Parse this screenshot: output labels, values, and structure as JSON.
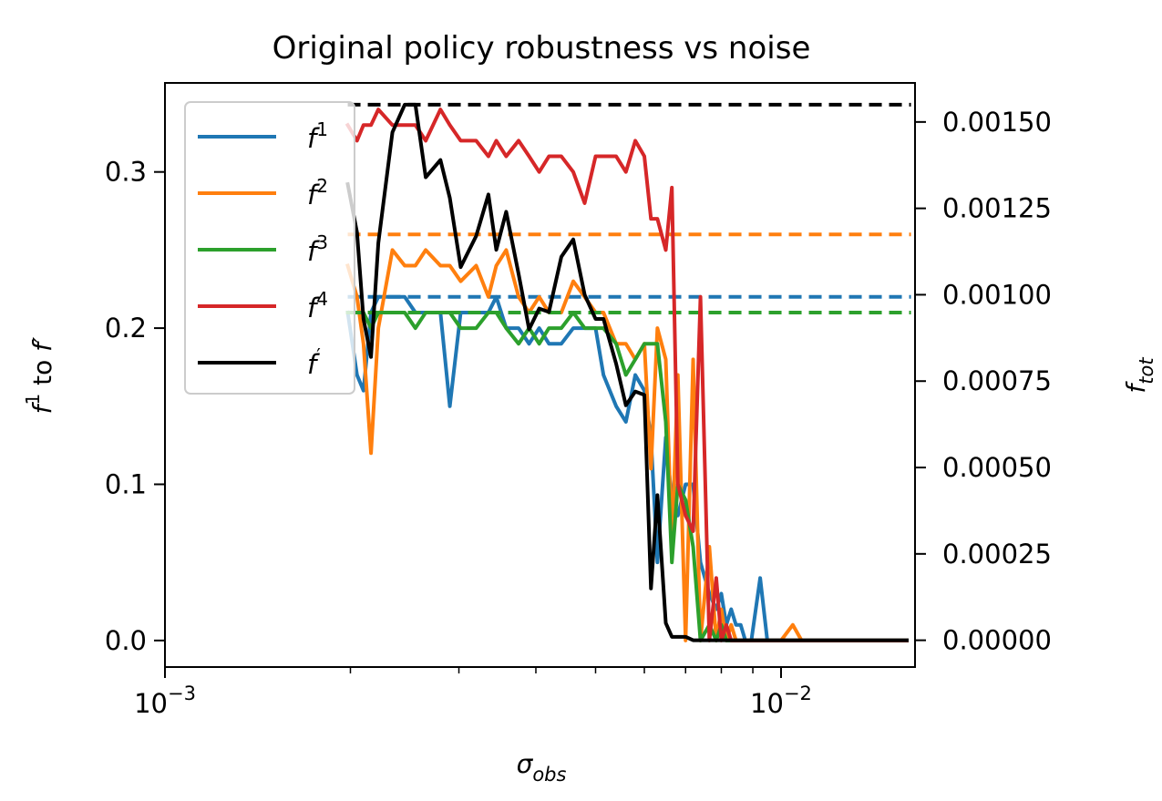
{
  "chart_data": {
    "type": "line",
    "title": "Original policy robustness vs noise",
    "xlabel": "σobs",
    "xlabel_parts": {
      "base": "σ",
      "sub": "obs"
    },
    "ylabel_left": "f1 to f′",
    "ylabel_left_parts": {
      "f1_base": "f",
      "f1_sup": "1",
      "mid": " to ",
      "fp": "f′"
    },
    "ylabel_right": "ftot",
    "ylabel_right_parts": {
      "base": "f",
      "sub": "tot"
    },
    "x_scale": "log",
    "xlim": [
      0.001,
      0.0165
    ],
    "ylim_left": [
      -0.017,
      0.357
    ],
    "ylim_right": [
      -7.75e-05,
      0.001613
    ],
    "x_major_ticks": [
      {
        "value": 0.001,
        "base": "10",
        "exp": "−3"
      },
      {
        "value": 0.01,
        "base": "10",
        "exp": "−2"
      }
    ],
    "x_minor_ticks": [
      0.002,
      0.003,
      0.004,
      0.005,
      0.006,
      0.007,
      0.008,
      0.009
    ],
    "y_left_ticks": [
      {
        "value": 0.0,
        "label": "0.0"
      },
      {
        "value": 0.1,
        "label": "0.1"
      },
      {
        "value": 0.2,
        "label": "0.2"
      },
      {
        "value": 0.3,
        "label": "0.3"
      }
    ],
    "y_right_ticks": [
      {
        "value": 0.0,
        "label": "0.00000"
      },
      {
        "value": 0.00025,
        "label": "0.00025"
      },
      {
        "value": 0.0005,
        "label": "0.00050"
      },
      {
        "value": 0.00075,
        "label": "0.00075"
      },
      {
        "value": 0.001,
        "label": "0.00100"
      },
      {
        "value": 0.00125,
        "label": "0.00125"
      },
      {
        "value": 0.0015,
        "label": "0.00150"
      }
    ],
    "grid": false,
    "legend_position": "upper-left",
    "series": [
      {
        "name": "f1",
        "legend_base": "f",
        "legend_sup": "1",
        "color": "#1f77b4",
        "axis": "left",
        "baseline": 0.22,
        "points": [
          [
            0.00198,
            0.21
          ],
          [
            0.00205,
            0.17
          ],
          [
            0.0021,
            0.16
          ],
          [
            0.00216,
            0.21
          ],
          [
            0.00222,
            0.22
          ],
          [
            0.00234,
            0.22
          ],
          [
            0.00245,
            0.22
          ],
          [
            0.00255,
            0.21
          ],
          [
            0.00265,
            0.21
          ],
          [
            0.0028,
            0.21
          ],
          [
            0.0029,
            0.15
          ],
          [
            0.00302,
            0.21
          ],
          [
            0.0032,
            0.21
          ],
          [
            0.00335,
            0.21
          ],
          [
            0.00345,
            0.22
          ],
          [
            0.00358,
            0.2
          ],
          [
            0.00375,
            0.2
          ],
          [
            0.0039,
            0.19
          ],
          [
            0.00405,
            0.2
          ],
          [
            0.0042,
            0.19
          ],
          [
            0.0044,
            0.19
          ],
          [
            0.0046,
            0.2
          ],
          [
            0.0048,
            0.2
          ],
          [
            0.005,
            0.2
          ],
          [
            0.00515,
            0.17
          ],
          [
            0.0054,
            0.15
          ],
          [
            0.0056,
            0.14
          ],
          [
            0.0058,
            0.17
          ],
          [
            0.006,
            0.16
          ],
          [
            0.00615,
            0.13
          ],
          [
            0.0063,
            0.05
          ],
          [
            0.0065,
            0.13
          ],
          [
            0.00665,
            0.09
          ],
          [
            0.0068,
            0.08
          ],
          [
            0.007,
            0.1
          ],
          [
            0.0072,
            0.1
          ],
          [
            0.0074,
            0.05
          ],
          [
            0.00765,
            0.03
          ],
          [
            0.00785,
            0.02
          ],
          [
            0.008,
            0.03
          ],
          [
            0.00815,
            0.01
          ],
          [
            0.0083,
            0.02
          ],
          [
            0.00845,
            0.01
          ],
          [
            0.0086,
            0.01
          ],
          [
            0.00875,
            0.0
          ],
          [
            0.00895,
            0.0
          ],
          [
            0.00925,
            0.04
          ],
          [
            0.0095,
            0.0
          ],
          [
            0.01,
            0.0
          ],
          [
            0.012,
            0.0
          ],
          [
            0.016,
            0.0
          ]
        ]
      },
      {
        "name": "f2",
        "legend_base": "f",
        "legend_sup": "2",
        "color": "#ff7f0e",
        "axis": "left",
        "baseline": 0.26,
        "points": [
          [
            0.00198,
            0.24
          ],
          [
            0.00205,
            0.22
          ],
          [
            0.0021,
            0.19
          ],
          [
            0.00216,
            0.12
          ],
          [
            0.00222,
            0.2
          ],
          [
            0.00234,
            0.25
          ],
          [
            0.00245,
            0.24
          ],
          [
            0.00255,
            0.24
          ],
          [
            0.00265,
            0.25
          ],
          [
            0.0028,
            0.24
          ],
          [
            0.0029,
            0.24
          ],
          [
            0.00302,
            0.23
          ],
          [
            0.0032,
            0.24
          ],
          [
            0.00335,
            0.22
          ],
          [
            0.00345,
            0.24
          ],
          [
            0.00358,
            0.25
          ],
          [
            0.00375,
            0.22
          ],
          [
            0.0039,
            0.21
          ],
          [
            0.00405,
            0.22
          ],
          [
            0.0042,
            0.21
          ],
          [
            0.0044,
            0.21
          ],
          [
            0.0046,
            0.23
          ],
          [
            0.0048,
            0.22
          ],
          [
            0.005,
            0.21
          ],
          [
            0.00515,
            0.21
          ],
          [
            0.0054,
            0.19
          ],
          [
            0.0056,
            0.19
          ],
          [
            0.0058,
            0.18
          ],
          [
            0.006,
            0.19
          ],
          [
            0.00615,
            0.11
          ],
          [
            0.0063,
            0.2
          ],
          [
            0.0065,
            0.18
          ],
          [
            0.00665,
            0.06
          ],
          [
            0.0068,
            0.17
          ],
          [
            0.007,
            0.0
          ],
          [
            0.0072,
            0.18
          ],
          [
            0.0074,
            0.0
          ],
          [
            0.00765,
            0.06
          ],
          [
            0.00785,
            0.0
          ],
          [
            0.008,
            0.02
          ],
          [
            0.00815,
            0.0
          ],
          [
            0.0083,
            0.01
          ],
          [
            0.00845,
            0.0
          ],
          [
            0.0086,
            0.0
          ],
          [
            0.00875,
            0.0
          ],
          [
            0.00895,
            0.0
          ],
          [
            0.00925,
            0.0
          ],
          [
            0.0095,
            0.0
          ],
          [
            0.01,
            0.0
          ],
          [
            0.01045,
            0.01
          ],
          [
            0.0108,
            0.0
          ],
          [
            0.012,
            0.0
          ],
          [
            0.016,
            0.0
          ]
        ]
      },
      {
        "name": "f3",
        "legend_base": "f",
        "legend_sup": "3",
        "color": "#2ca02c",
        "axis": "left",
        "baseline": 0.21,
        "points": [
          [
            0.00198,
            0.21
          ],
          [
            0.00205,
            0.21
          ],
          [
            0.0021,
            0.21
          ],
          [
            0.00216,
            0.2
          ],
          [
            0.00222,
            0.21
          ],
          [
            0.00234,
            0.21
          ],
          [
            0.00245,
            0.21
          ],
          [
            0.00255,
            0.2
          ],
          [
            0.00265,
            0.21
          ],
          [
            0.0028,
            0.21
          ],
          [
            0.0029,
            0.21
          ],
          [
            0.00302,
            0.2
          ],
          [
            0.0032,
            0.2
          ],
          [
            0.00335,
            0.21
          ],
          [
            0.00345,
            0.21
          ],
          [
            0.00358,
            0.2
          ],
          [
            0.00375,
            0.19
          ],
          [
            0.0039,
            0.2
          ],
          [
            0.00405,
            0.19
          ],
          [
            0.0042,
            0.2
          ],
          [
            0.0044,
            0.2
          ],
          [
            0.0046,
            0.21
          ],
          [
            0.0048,
            0.2
          ],
          [
            0.005,
            0.2
          ],
          [
            0.00515,
            0.2
          ],
          [
            0.0054,
            0.19
          ],
          [
            0.0056,
            0.17
          ],
          [
            0.0058,
            0.18
          ],
          [
            0.006,
            0.19
          ],
          [
            0.00615,
            0.19
          ],
          [
            0.0063,
            0.19
          ],
          [
            0.0065,
            0.14
          ],
          [
            0.00665,
            0.05
          ],
          [
            0.0068,
            0.1
          ],
          [
            0.007,
            0.09
          ],
          [
            0.0072,
            0.06
          ],
          [
            0.0074,
            0.0
          ],
          [
            0.00765,
            0.01
          ],
          [
            0.00785,
            0.0
          ],
          [
            0.008,
            0.01
          ],
          [
            0.00815,
            0.0
          ],
          [
            0.0083,
            0.0
          ],
          [
            0.00845,
            0.0
          ],
          [
            0.0086,
            0.0
          ],
          [
            0.00875,
            0.0
          ],
          [
            0.00895,
            0.0
          ],
          [
            0.00925,
            0.0
          ],
          [
            0.0095,
            0.0
          ],
          [
            0.01,
            0.0
          ],
          [
            0.012,
            0.0
          ],
          [
            0.016,
            0.0
          ]
        ]
      },
      {
        "name": "f4",
        "legend_base": "f",
        "legend_sup": "4",
        "color": "#d62728",
        "axis": "left",
        "baseline": null,
        "points": [
          [
            0.00198,
            0.33
          ],
          [
            0.00205,
            0.32
          ],
          [
            0.0021,
            0.33
          ],
          [
            0.00216,
            0.33
          ],
          [
            0.00222,
            0.34
          ],
          [
            0.00234,
            0.33
          ],
          [
            0.00245,
            0.33
          ],
          [
            0.00255,
            0.33
          ],
          [
            0.00265,
            0.32
          ],
          [
            0.0028,
            0.34
          ],
          [
            0.0029,
            0.33
          ],
          [
            0.00302,
            0.32
          ],
          [
            0.0032,
            0.32
          ],
          [
            0.00335,
            0.31
          ],
          [
            0.00345,
            0.32
          ],
          [
            0.00358,
            0.31
          ],
          [
            0.00375,
            0.32
          ],
          [
            0.0039,
            0.31
          ],
          [
            0.00405,
            0.3
          ],
          [
            0.0042,
            0.31
          ],
          [
            0.0044,
            0.31
          ],
          [
            0.0046,
            0.3
          ],
          [
            0.0048,
            0.28
          ],
          [
            0.005,
            0.31
          ],
          [
            0.00515,
            0.31
          ],
          [
            0.0054,
            0.31
          ],
          [
            0.0056,
            0.3
          ],
          [
            0.0058,
            0.32
          ],
          [
            0.006,
            0.31
          ],
          [
            0.00615,
            0.27
          ],
          [
            0.0063,
            0.27
          ],
          [
            0.0065,
            0.25
          ],
          [
            0.00665,
            0.29
          ],
          [
            0.0068,
            0.1
          ],
          [
            0.007,
            0.08
          ],
          [
            0.0072,
            0.07
          ],
          [
            0.0074,
            0.22
          ],
          [
            0.00765,
            0.0
          ],
          [
            0.00785,
            0.04
          ],
          [
            0.008,
            0.0
          ],
          [
            0.00815,
            0.01
          ],
          [
            0.0083,
            0.0
          ],
          [
            0.00845,
            0.0
          ],
          [
            0.0086,
            0.0
          ],
          [
            0.00875,
            0.0
          ],
          [
            0.00895,
            0.0
          ],
          [
            0.00925,
            0.0
          ],
          [
            0.0095,
            0.0
          ],
          [
            0.01,
            0.0
          ],
          [
            0.012,
            0.0
          ],
          [
            0.016,
            0.0
          ]
        ]
      },
      {
        "name": "f′",
        "legend_base": "f",
        "legend_sup": "′",
        "color": "#000000",
        "axis": "right",
        "baseline": 0.00155,
        "points": [
          [
            0.00198,
            0.00132
          ],
          [
            0.00205,
            0.00118
          ],
          [
            0.0021,
            0.00093
          ],
          [
            0.00216,
            0.00082
          ],
          [
            0.00222,
            0.00115
          ],
          [
            0.00234,
            0.00147
          ],
          [
            0.00245,
            0.00155
          ],
          [
            0.00255,
            0.00155
          ],
          [
            0.00265,
            0.00134
          ],
          [
            0.0028,
            0.00139
          ],
          [
            0.0029,
            0.00128
          ],
          [
            0.00302,
            0.00108
          ],
          [
            0.0032,
            0.00117
          ],
          [
            0.00335,
            0.00129
          ],
          [
            0.00345,
            0.00113
          ],
          [
            0.00358,
            0.00124
          ],
          [
            0.00375,
            0.00106
          ],
          [
            0.0039,
            0.0009
          ],
          [
            0.00405,
            0.00096
          ],
          [
            0.0042,
            0.00095
          ],
          [
            0.0044,
            0.00111
          ],
          [
            0.0046,
            0.00116
          ],
          [
            0.0048,
            0.001
          ],
          [
            0.005,
            0.00093
          ],
          [
            0.00515,
            0.00093
          ],
          [
            0.0054,
            0.0008
          ],
          [
            0.0056,
            0.00068
          ],
          [
            0.0058,
            0.00072
          ],
          [
            0.006,
            0.00071
          ],
          [
            0.00615,
            0.00015
          ],
          [
            0.0063,
            0.00042
          ],
          [
            0.0065,
            5e-05
          ],
          [
            0.00665,
            1e-05
          ],
          [
            0.0068,
            1e-05
          ],
          [
            0.007,
            1e-05
          ],
          [
            0.0072,
            0.0
          ],
          [
            0.0074,
            0.0
          ],
          [
            0.00765,
            0.0
          ],
          [
            0.00785,
            0.0
          ],
          [
            0.008,
            0.0
          ],
          [
            0.009,
            0.0
          ],
          [
            0.01,
            0.0
          ],
          [
            0.012,
            0.0
          ],
          [
            0.016,
            0.0
          ]
        ]
      }
    ]
  }
}
